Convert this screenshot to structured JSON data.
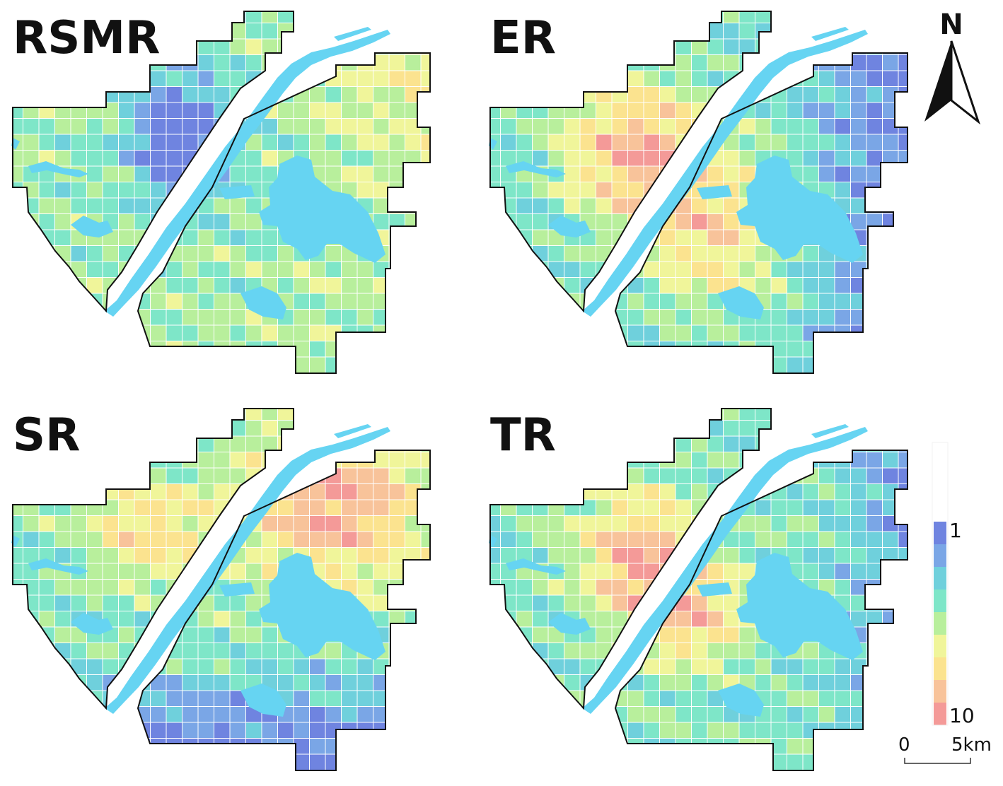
{
  "panels": [
    {
      "id": "rsmr",
      "title": "RSMR",
      "pattern": "rsmr"
    },
    {
      "id": "er",
      "title": "ER",
      "pattern": "er"
    },
    {
      "id": "sr",
      "title": "SR",
      "pattern": "sr"
    },
    {
      "id": "tr",
      "title": "TR",
      "pattern": "tr"
    }
  ],
  "north_arrow": {
    "label": "N"
  },
  "legend": {
    "top_label": "1",
    "bottom_label": "10",
    "colors": [
      "#6f84e0",
      "#7aa6e6",
      "#6fd0dc",
      "#7ee6c8",
      "#b8ef9c",
      "#f0f59a",
      "#fbe38f",
      "#f8c39a",
      "#f49a98"
    ]
  },
  "scale_bar": {
    "start": "0",
    "end": "5km"
  },
  "colors": {
    "water": "#66d4f2",
    "boundary": "#111111",
    "grid_line": "#ffffff"
  }
}
